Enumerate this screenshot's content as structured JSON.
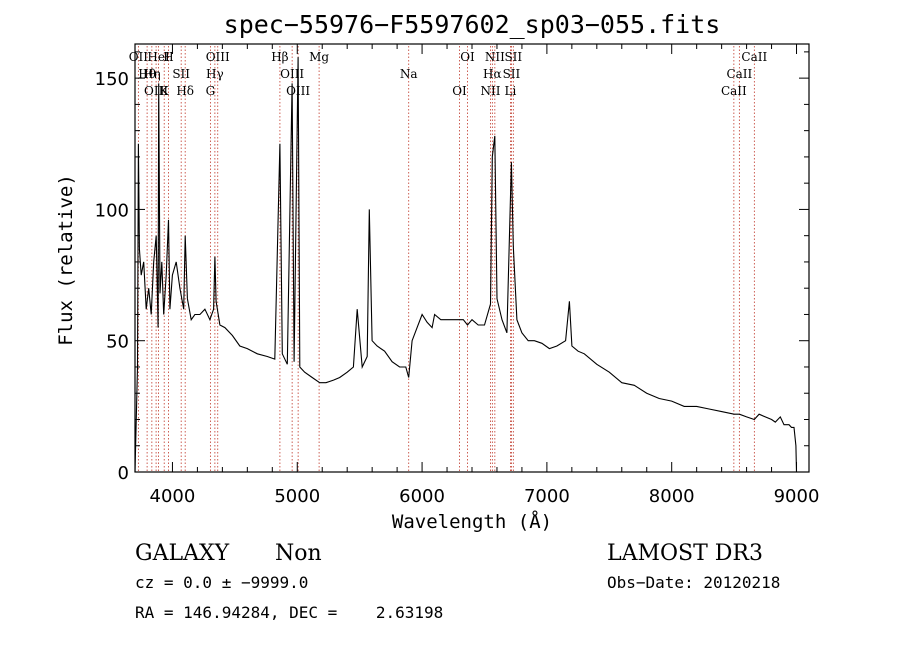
{
  "chart_data": {
    "type": "line",
    "title": "spec−55976−F5597602_sp03−055.fits",
    "xlabel": "Wavelength (Å)",
    "ylabel": "Flux (relative)",
    "xlim": [
      3700,
      9100
    ],
    "ylim": [
      0,
      163
    ],
    "xticks": [
      4000,
      5000,
      6000,
      7000,
      8000,
      9000
    ],
    "yticks": [
      0,
      50,
      100,
      150
    ],
    "grid": false,
    "spectrum": {
      "x": [
        3700,
        3720,
        3727,
        3735,
        3750,
        3770,
        3790,
        3810,
        3830,
        3850,
        3870,
        3885,
        3890,
        3900,
        3915,
        3930,
        3950,
        3968,
        3980,
        4000,
        4030,
        4060,
        4090,
        4102,
        4120,
        4150,
        4180,
        4220,
        4260,
        4300,
        4330,
        4340,
        4350,
        4380,
        4420,
        4480,
        4540,
        4600,
        4680,
        4760,
        4820,
        4861,
        4880,
        4920,
        4959,
        4975,
        5007,
        5020,
        5060,
        5120,
        5180,
        5230,
        5290,
        5340,
        5400,
        5450,
        5480,
        5520,
        5560,
        5577,
        5600,
        5640,
        5700,
        5760,
        5820,
        5870,
        5893,
        5920,
        5960,
        6000,
        6040,
        6080,
        6100,
        6150,
        6200,
        6250,
        6300,
        6330,
        6364,
        6400,
        6450,
        6500,
        6548,
        6563,
        6583,
        6600,
        6640,
        6680,
        6716,
        6731,
        6760,
        6800,
        6850,
        6900,
        6960,
        7020,
        7080,
        7150,
        7180,
        7200,
        7250,
        7300,
        7400,
        7500,
        7600,
        7700,
        7800,
        7900,
        8000,
        8100,
        8200,
        8300,
        8400,
        8500,
        8542,
        8600,
        8662,
        8700,
        8750,
        8800,
        8830,
        8850,
        8870,
        8900,
        8940,
        8960,
        8980,
        8995,
        9000
      ],
      "y": [
        0,
        40,
        125,
        85,
        75,
        80,
        62,
        70,
        60,
        80,
        90,
        55,
        148,
        68,
        80,
        60,
        75,
        96,
        62,
        75,
        80,
        70,
        62,
        90,
        66,
        58,
        60,
        60,
        62,
        58,
        62,
        82,
        65,
        56,
        55,
        52,
        48,
        47,
        45,
        44,
        43,
        125,
        45,
        41,
        148,
        42,
        158,
        40,
        38,
        36,
        34,
        34,
        35,
        36,
        38,
        40,
        62,
        40,
        44,
        100,
        50,
        48,
        46,
        42,
        40,
        40,
        36,
        50,
        55,
        60,
        57,
        55,
        60,
        58,
        58,
        58,
        58,
        58,
        56,
        58,
        56,
        56,
        64,
        120,
        128,
        66,
        58,
        53,
        118,
        86,
        58,
        53,
        50,
        50,
        49,
        47,
        48,
        50,
        65,
        48,
        46,
        45,
        41,
        38,
        34,
        33,
        30,
        28,
        27,
        25,
        25,
        24,
        23,
        22,
        22,
        21,
        20,
        22,
        21,
        20,
        19,
        20,
        21,
        18,
        18,
        17,
        17,
        10,
        0
      ]
    },
    "lines": [
      {
        "name": "OII",
        "x": 3727
      },
      {
        "name": "Hθ",
        "x": 3797
      },
      {
        "name": "OIII",
        "x": 3869
      },
      {
        "name": "HeI",
        "x": 3889
      },
      {
        "name": "Hη",
        "x": 3835
      },
      {
        "name": "K",
        "x": 3934
      },
      {
        "name": "H",
        "x": 3968
      },
      {
        "name": "SII",
        "x": 4070
      },
      {
        "name": "Hδ",
        "x": 4102
      },
      {
        "name": "OIII",
        "x": 4363
      },
      {
        "name": "Hγ",
        "x": 4340
      },
      {
        "name": "G",
        "x": 4304
      },
      {
        "name": "Hβ",
        "x": 4861
      },
      {
        "name": "OIII",
        "x": 4959
      },
      {
        "name": "OIII",
        "x": 5007
      },
      {
        "name": "Mg",
        "x": 5175
      },
      {
        "name": "Na",
        "x": 5893
      },
      {
        "name": "OI",
        "x": 6300
      },
      {
        "name": "OI",
        "x": 6364
      },
      {
        "name": "Hα",
        "x": 6563
      },
      {
        "name": "NII",
        "x": 6548
      },
      {
        "name": "NII",
        "x": 6583
      },
      {
        "name": "SII",
        "x": 6716
      },
      {
        "name": "Li",
        "x": 6708
      },
      {
        "name": "SII",
        "x": 6731
      },
      {
        "name": "CaII",
        "x": 8542
      },
      {
        "name": "CaII",
        "x": 8498
      },
      {
        "name": "CaII",
        "x": 8662
      }
    ]
  },
  "info": {
    "object_class": "GALAXY",
    "subclass": "Non",
    "survey": "LAMOST DR3",
    "redshift": "cz = 0.0 ± −9999.0",
    "obs_date": "Obs−Date: 20120218",
    "coords": "RA = 146.94284, DEC =    2.63198"
  }
}
